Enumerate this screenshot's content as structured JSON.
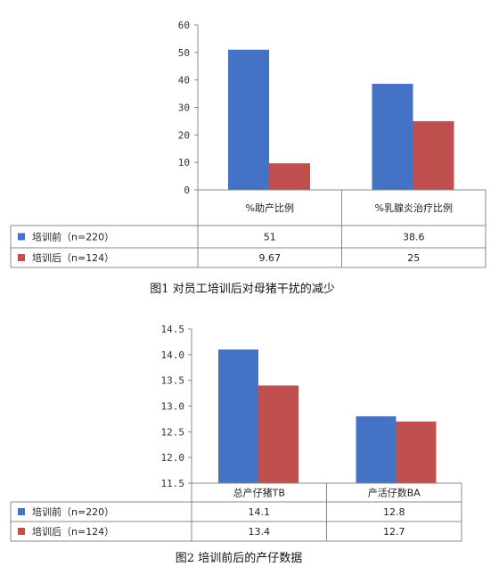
{
  "chart_data": [
    {
      "type": "bar",
      "categories": [
        "%助产比例",
        "%乳腺炎治疗比例"
      ],
      "series": [
        {
          "name": "培训前（n=220）",
          "values": [
            51,
            38.6
          ],
          "labels": [
            "51",
            "38.6"
          ],
          "color": "#4472C4"
        },
        {
          "name": "培训后（n=124）",
          "values": [
            9.67,
            25
          ],
          "labels": [
            "9.67",
            "25"
          ],
          "color": "#C0504D"
        }
      ],
      "yticks": [
        "0",
        "10",
        "20",
        "30",
        "40",
        "50",
        "60"
      ],
      "ylim": [
        0,
        60
      ],
      "legend": "data-table",
      "caption": "图1   对员工培训后对母猪干扰的减少"
    },
    {
      "type": "bar",
      "categories": [
        "总产仔猪TB",
        "产活仔数BA"
      ],
      "series": [
        {
          "name": "培训前（n=220）",
          "values": [
            14.1,
            12.8
          ],
          "labels": [
            "14.1",
            "12.8"
          ],
          "color": "#4472C4"
        },
        {
          "name": "培训后（n=124）",
          "values": [
            13.4,
            12.7
          ],
          "labels": [
            "13.4",
            "12.7"
          ],
          "color": "#C0504D"
        }
      ],
      "yticks": [
        "11.5",
        "12.0",
        "12.5",
        "13.0",
        "13.5",
        "14.0",
        "14.5"
      ],
      "ylim": [
        11.5,
        14.5
      ],
      "legend": "data-table",
      "caption": "图2   培训前后的产仔数据"
    }
  ]
}
